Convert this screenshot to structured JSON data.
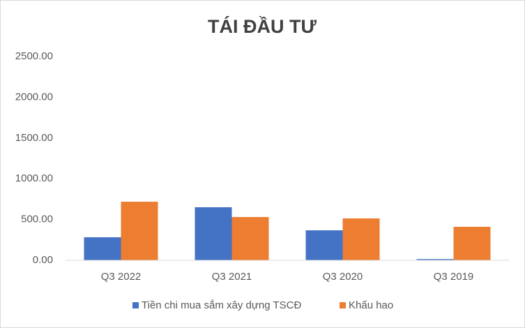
{
  "chart_data": {
    "type": "bar",
    "title": "TÁI ĐẦU TƯ",
    "categories": [
      "Q3 2022",
      "Q3 2021",
      "Q3 2020",
      "Q3 2019"
    ],
    "series": [
      {
        "name": "Tiền chi mua sắm xây dựng TSCĐ",
        "color": "#4472c4",
        "values": [
          283,
          651,
          368,
          15
        ]
      },
      {
        "name": "Khấu hao",
        "color": "#ed7d31",
        "values": [
          719,
          531,
          514,
          411
        ]
      }
    ],
    "ylim": [
      0,
      2500
    ],
    "yticks": [
      {
        "value": 0,
        "label": "0.00"
      },
      {
        "value": 500,
        "label": "500.00"
      },
      {
        "value": 1000,
        "label": "1000.00"
      },
      {
        "value": 1500,
        "label": "1500.00"
      },
      {
        "value": 2000,
        "label": "2000.00"
      },
      {
        "value": 2500,
        "label": "2500.00"
      }
    ],
    "grid": false,
    "legend": "bottom"
  }
}
